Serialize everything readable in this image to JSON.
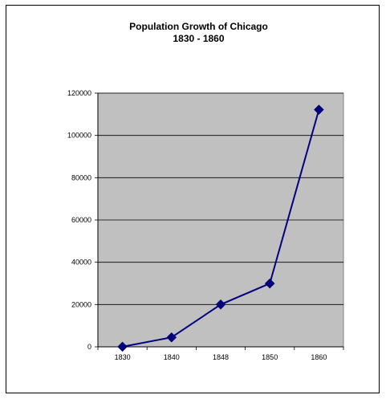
{
  "chart_data": {
    "type": "line",
    "title_line1": "Population Growth of Chicago",
    "title_line2": "1830 - 1860",
    "categories": [
      "1830",
      "1840",
      "1848",
      "1850",
      "1860"
    ],
    "series": [
      {
        "values": [
          50,
          4470,
          20023,
          29963,
          112172
        ]
      }
    ],
    "ylim": [
      0,
      120000
    ],
    "yticks": [
      0,
      20000,
      40000,
      60000,
      80000,
      100000,
      120000
    ],
    "grid": true,
    "colors": {
      "plot_bg": "#c0c0c0",
      "line": "#000080",
      "marker": "#000080"
    }
  }
}
